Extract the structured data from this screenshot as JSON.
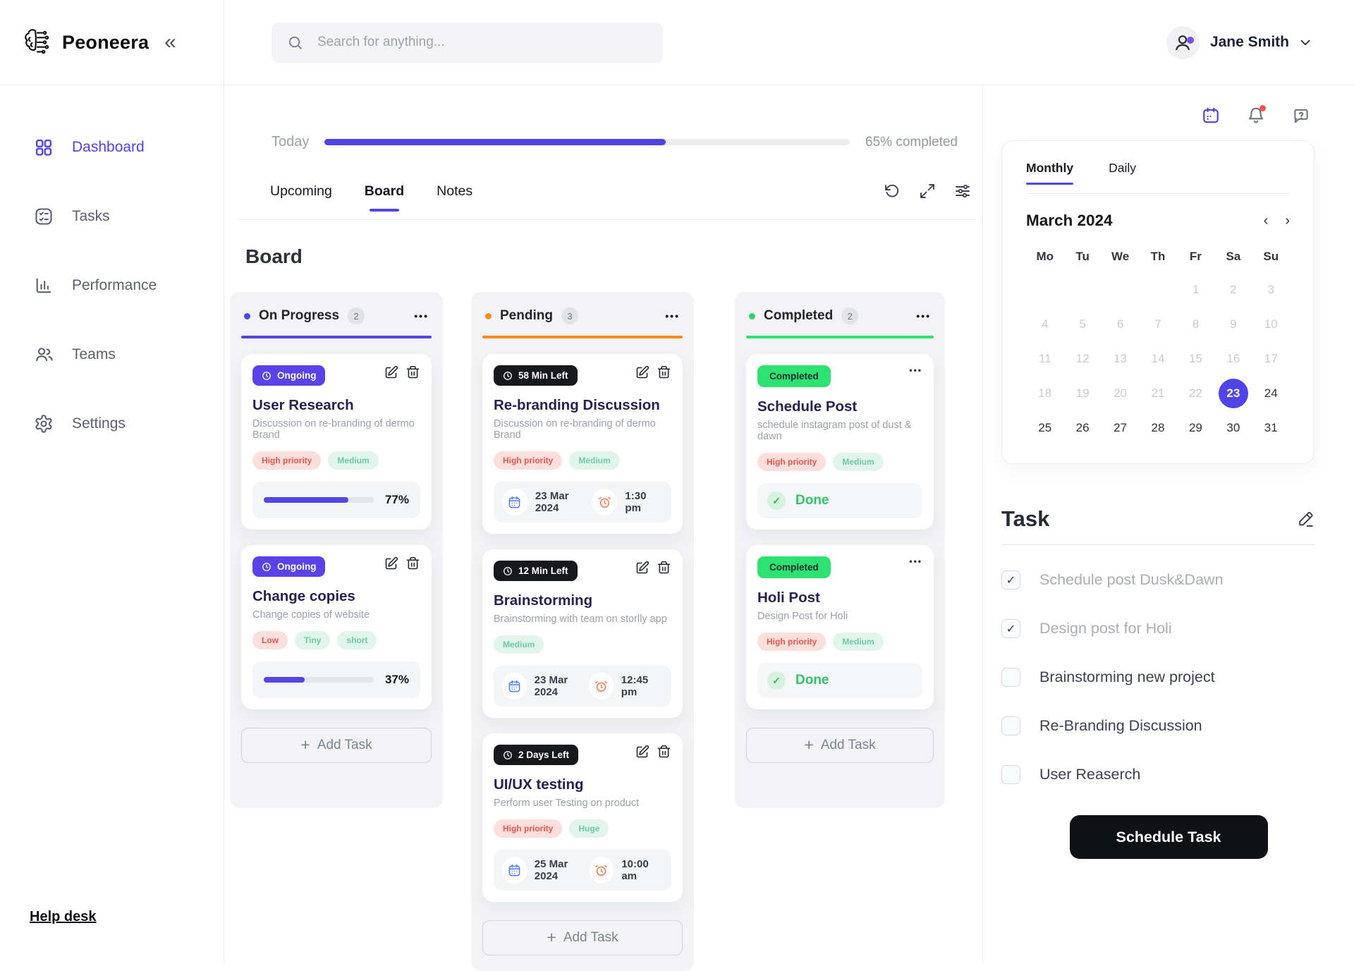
{
  "brand": {
    "name": "Peoneera"
  },
  "header": {
    "search_placeholder": "Search for anything...",
    "user_name": "Jane Smith"
  },
  "sidebar": {
    "items": [
      {
        "label": "Dashboard",
        "icon": "grid-icon",
        "active": true
      },
      {
        "label": "Tasks",
        "icon": "checklist-icon",
        "active": false
      },
      {
        "label": "Performance",
        "icon": "bar-chart-icon",
        "active": false
      },
      {
        "label": "Teams",
        "icon": "people-icon",
        "active": false
      },
      {
        "label": "Settings",
        "icon": "gear-icon",
        "active": false
      }
    ],
    "help_link": "Help desk"
  },
  "progress": {
    "label": "Today",
    "percent": 65,
    "status": "65% completed"
  },
  "view_tabs": [
    {
      "label": "Upcoming",
      "active": false
    },
    {
      "label": "Board",
      "active": true
    },
    {
      "label": "Notes",
      "active": false
    }
  ],
  "board": {
    "title": "Board",
    "columns": [
      {
        "name": "On Progress",
        "count": "2",
        "accent": "#5247e5",
        "cards": [
          {
            "badge": "Ongoing",
            "title": "User Research",
            "description": "Discussion on re-branding of dermo Brand",
            "tags": [
              {
                "label": "High priority",
                "type": "red"
              },
              {
                "label": "Medium",
                "type": "green"
              }
            ],
            "progress_percent": 77,
            "progress_label": "77%"
          },
          {
            "badge": "Ongoing",
            "title": "Change copies",
            "description": "Change copies of website",
            "tags": [
              {
                "label": "Low",
                "type": "red"
              },
              {
                "label": "Tiny",
                "type": "green"
              },
              {
                "label": "short",
                "type": "green"
              }
            ],
            "progress_percent": 37,
            "progress_label": "37%"
          }
        ],
        "add_task": "Add Task"
      },
      {
        "name": "Pending",
        "count": "3",
        "accent": "#f98a1e",
        "cards": [
          {
            "badge": "58 Min Left",
            "title": "Re-branding Discussion",
            "description": "Discussion on re-branding of dermo Brand",
            "tags": [
              {
                "label": "High priority",
                "type": "red"
              },
              {
                "label": "Medium",
                "type": "green"
              }
            ],
            "date": "23 Mar 2024",
            "time": "1:30 pm"
          },
          {
            "badge": "12 Min Left",
            "title": "Brainstorming",
            "description": "Brainstorming with team on storlly app",
            "tags": [
              {
                "label": "Medium",
                "type": "green"
              }
            ],
            "date": "23 Mar 2024",
            "time": "12:45 pm"
          },
          {
            "badge": "2 Days Left",
            "title": "UI/UX testing",
            "description": "Perform user Testing on product",
            "tags": [
              {
                "label": "High priority",
                "type": "red"
              },
              {
                "label": "Huge",
                "type": "green"
              }
            ],
            "date": "25 Mar 2024",
            "time": "10:00 am"
          }
        ],
        "add_task": "Add Task"
      },
      {
        "name": "Completed",
        "count": "2",
        "accent": "#2ee272",
        "cards": [
          {
            "badge": "Completed",
            "title": "Schedule Post",
            "description": "schedule instagram post of dust & dawn",
            "tags": [
              {
                "label": "High priority",
                "type": "red"
              },
              {
                "label": "Medium",
                "type": "green"
              }
            ],
            "done_label": "Done"
          },
          {
            "badge": "Completed",
            "title": "Holi Post",
            "description": "Design Post for Holi",
            "tags": [
              {
                "label": "High priority",
                "type": "red"
              },
              {
                "label": "Medium",
                "type": "green"
              }
            ],
            "done_label": "Done"
          }
        ],
        "add_task": "Add Task"
      }
    ]
  },
  "calendar": {
    "tabs": [
      {
        "label": "Monthly",
        "active": true
      },
      {
        "label": "Daily",
        "active": false
      }
    ],
    "month": "March 2024",
    "weekdays": [
      "Mo",
      "Tu",
      "We",
      "Th",
      "Fr",
      "Sa",
      "Su"
    ],
    "selected_day": "23",
    "days": [
      {
        "day": "",
        "state": "empty"
      },
      {
        "day": "",
        "state": "empty"
      },
      {
        "day": "",
        "state": "empty"
      },
      {
        "day": "",
        "state": "empty"
      },
      {
        "day": "1",
        "state": "muted"
      },
      {
        "day": "2",
        "state": "muted"
      },
      {
        "day": "3",
        "state": "muted"
      },
      {
        "day": "4",
        "state": "muted"
      },
      {
        "day": "5",
        "state": "muted"
      },
      {
        "day": "6",
        "state": "muted"
      },
      {
        "day": "7",
        "state": "muted"
      },
      {
        "day": "8",
        "state": "muted"
      },
      {
        "day": "9",
        "state": "muted"
      },
      {
        "day": "10",
        "state": "muted"
      },
      {
        "day": "11",
        "state": "muted"
      },
      {
        "day": "12",
        "state": "muted"
      },
      {
        "day": "13",
        "state": "muted"
      },
      {
        "day": "14",
        "state": "muted"
      },
      {
        "day": "15",
        "state": "muted"
      },
      {
        "day": "16",
        "state": "muted"
      },
      {
        "day": "17",
        "state": "muted"
      },
      {
        "day": "18",
        "state": "muted"
      },
      {
        "day": "19",
        "state": "muted"
      },
      {
        "day": "20",
        "state": "muted"
      },
      {
        "day": "21",
        "state": "muted"
      },
      {
        "day": "22",
        "state": "muted"
      },
      {
        "day": "23",
        "state": "selected"
      },
      {
        "day": "24",
        "state": "normal"
      },
      {
        "day": "25",
        "state": "normal"
      },
      {
        "day": "26",
        "state": "normal"
      },
      {
        "day": "27",
        "state": "normal"
      },
      {
        "day": "28",
        "state": "normal"
      },
      {
        "day": "29",
        "state": "normal"
      },
      {
        "day": "30",
        "state": "normal"
      },
      {
        "day": "31",
        "state": "normal"
      }
    ]
  },
  "tasks": {
    "title": "Task",
    "items": [
      {
        "label": "Schedule post Dusk&Dawn",
        "checked": true
      },
      {
        "label": "Design post for Holi",
        "checked": true
      },
      {
        "label": "Brainstorming new project",
        "checked": false
      },
      {
        "label": "Re-Branding Discussion",
        "checked": false
      },
      {
        "label": "User Reaserch",
        "checked": false
      }
    ],
    "cta": "Schedule Task"
  },
  "icons": {
    "collapse_glyph": "«",
    "ellipsis_glyph": "•••",
    "nav_prev": "‹",
    "nav_next": "›",
    "plus_glyph": "+",
    "check_glyph": "✓",
    "quick_actions": [
      "calendar-icon",
      "bell-icon",
      "help-icon"
    ],
    "board_tools": [
      "rotate-icon",
      "expand-icon",
      "filter-sliders-icon"
    ],
    "card_actions": [
      "edit-icon",
      "trash-icon"
    ]
  },
  "colors": {
    "accent_purple": "#5247e5",
    "badge_purple": "#5a42e9",
    "pending_orange": "#f98a1e",
    "success_green": "#2ee272",
    "done_text_green": "#2fc468",
    "badge_black": "#17181c",
    "tag_red_bg": "#fcdeda",
    "tag_red_text": "#e2574e",
    "tag_green_bg": "#e1f5eb",
    "tag_green_text": "#6ec9a4",
    "selected_day_bg": "#4f43ea",
    "notification_dot": "#ef5350",
    "cta_black": "#101114"
  }
}
